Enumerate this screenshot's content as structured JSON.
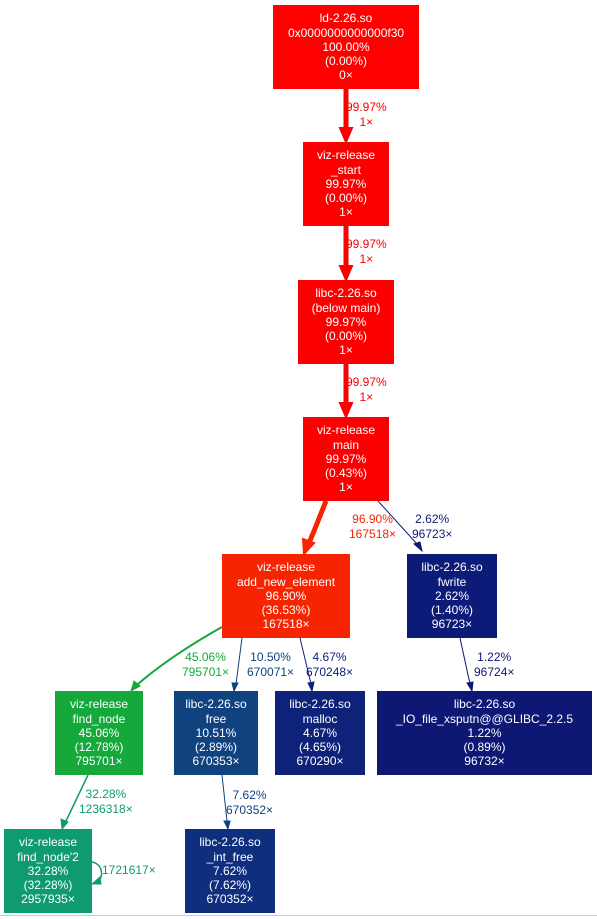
{
  "nodes": [
    {
      "id": "ld",
      "color": "#ff0000",
      "lines": [
        "ld-2.26.so",
        "0x0000000000000f30",
        "100.00%",
        "(0.00%)",
        "0×"
      ]
    },
    {
      "id": "start",
      "color": "#fb0000",
      "lines": [
        "viz-release",
        "_start",
        "99.97%",
        "(0.00%)",
        "1×"
      ]
    },
    {
      "id": "libcmain",
      "color": "#fb0000",
      "lines": [
        "libc-2.26.so",
        "(below main)",
        "99.97%",
        "(0.00%)",
        "1×"
      ]
    },
    {
      "id": "main",
      "color": "#fb0000",
      "lines": [
        "viz-release",
        "main",
        "99.97%",
        "(0.43%)",
        "1×"
      ]
    },
    {
      "id": "addnew",
      "color": "#f72402",
      "lines": [
        "viz-release",
        "add_new_element",
        "96.90%",
        "(36.53%)",
        "167518×"
      ]
    },
    {
      "id": "fwrite",
      "color": "#0d1b78",
      "lines": [
        "libc-2.26.so",
        "fwrite",
        "2.62%",
        "(1.40%)",
        "96723×"
      ]
    },
    {
      "id": "findnode",
      "color": "#14a93a",
      "lines": [
        "viz-release",
        "find_node",
        "45.06%",
        "(12.78%)",
        "795701×"
      ]
    },
    {
      "id": "free",
      "color": "#10427f",
      "lines": [
        "libc-2.26.so",
        "free",
        "10.51%",
        "(2.89%)",
        "670353×"
      ]
    },
    {
      "id": "malloc",
      "color": "#0d2278",
      "lines": [
        "libc-2.26.so",
        "malloc",
        "4.67%",
        "(4.65%)",
        "670290×"
      ]
    },
    {
      "id": "xsputn",
      "color": "#0d1874",
      "lines": [
        "libc-2.26.so",
        "_IO_file_xsputn@@GLIBC_2.2.5",
        "1.22%",
        "(0.89%)",
        "96732×"
      ]
    },
    {
      "id": "findnode2",
      "color": "#0e9b72",
      "lines": [
        "viz-release",
        "find_node'2",
        "32.28%",
        "(32.28%)",
        "2957935×"
      ]
    },
    {
      "id": "intfree",
      "color": "#0f2e7d",
      "lines": [
        "libc-2.26.so",
        "_int_free",
        "7.62%",
        "(7.62%)",
        "670352×"
      ]
    }
  ],
  "edges": [
    {
      "id": "ld-start",
      "color": "#fb0000",
      "lines": [
        "99.97%",
        "1×"
      ]
    },
    {
      "id": "start-libcmain",
      "color": "#fb0000",
      "lines": [
        "99.97%",
        "1×"
      ]
    },
    {
      "id": "libcmain-main",
      "color": "#fb0000",
      "lines": [
        "99.97%",
        "1×"
      ]
    },
    {
      "id": "main-addnew",
      "color": "#f72402",
      "lines": [
        "96.90%",
        "167518×"
      ]
    },
    {
      "id": "main-fwrite",
      "color": "#0d1b78",
      "lines": [
        "2.62%",
        "96723×"
      ]
    },
    {
      "id": "addnew-findnode",
      "color": "#14a93a",
      "lines": [
        "45.06%",
        "795701×"
      ]
    },
    {
      "id": "addnew-free",
      "color": "#10427f",
      "lines": [
        "10.50%",
        "670071×"
      ]
    },
    {
      "id": "addnew-malloc",
      "color": "#0d2278",
      "lines": [
        "4.67%",
        "670248×"
      ]
    },
    {
      "id": "fwrite-xsputn",
      "color": "#0d1874",
      "lines": [
        "1.22%",
        "96724×"
      ]
    },
    {
      "id": "findnode-findnode2",
      "color": "#0e9b72",
      "lines": [
        "32.28%",
        "1236318×"
      ]
    },
    {
      "id": "free-intfree",
      "color": "#10427f",
      "lines": [
        "7.62%",
        "670352×"
      ]
    },
    {
      "id": "findnode2-self",
      "color": "#0e9b72",
      "lines": [
        "1721617×"
      ]
    }
  ]
}
